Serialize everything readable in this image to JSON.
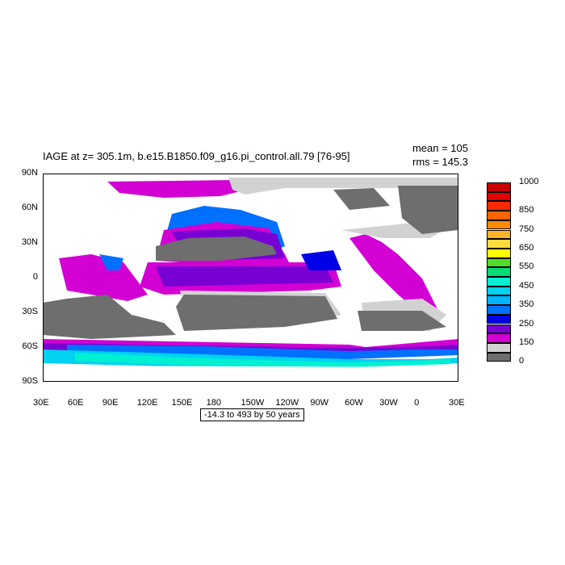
{
  "title": "IAGE at z= 305.1m, b.e15.B1850.f09_g16.pi_control.all.79 [76-95]",
  "stats": {
    "mean": "mean = 105",
    "rms": "rms = 145.3"
  },
  "range_label": "-14.3 to 493 by 50 years",
  "lat_labels": [
    "90N",
    "60N",
    "30N",
    "0",
    "30S",
    "60S",
    "90S"
  ],
  "lon_labels": [
    "30E",
    "60E",
    "90E",
    "120E",
    "150E",
    "180",
    "150W",
    "120W",
    "90W",
    "60W",
    "30W",
    "0",
    "30E"
  ],
  "colorbar": {
    "colors": [
      "#c80000",
      "#e00000",
      "#ff2800",
      "#ff6400",
      "#ff8c00",
      "#ffb428",
      "#ffdc3c",
      "#ffff00",
      "#50dc28",
      "#00dc78",
      "#00f0d2",
      "#00d2f0",
      "#00b4ff",
      "#0070ff",
      "#0000e6",
      "#7800d2",
      "#d200d2",
      "#d2d2d2",
      "#6e6e6e"
    ],
    "labels": [
      "1000",
      "850",
      "750",
      "650",
      "550",
      "450",
      "350",
      "250",
      "150",
      "0"
    ]
  },
  "map_colors": {
    "land": "#ffffff",
    "old_water": "#6e6e6e",
    "light_gray": "#d2d2d2",
    "magenta": "#d200d2",
    "purple": "#7800d2",
    "blue": "#0000e6",
    "azure": "#0070ff",
    "cyan": "#00d2f0",
    "aqua": "#00f0d2"
  }
}
